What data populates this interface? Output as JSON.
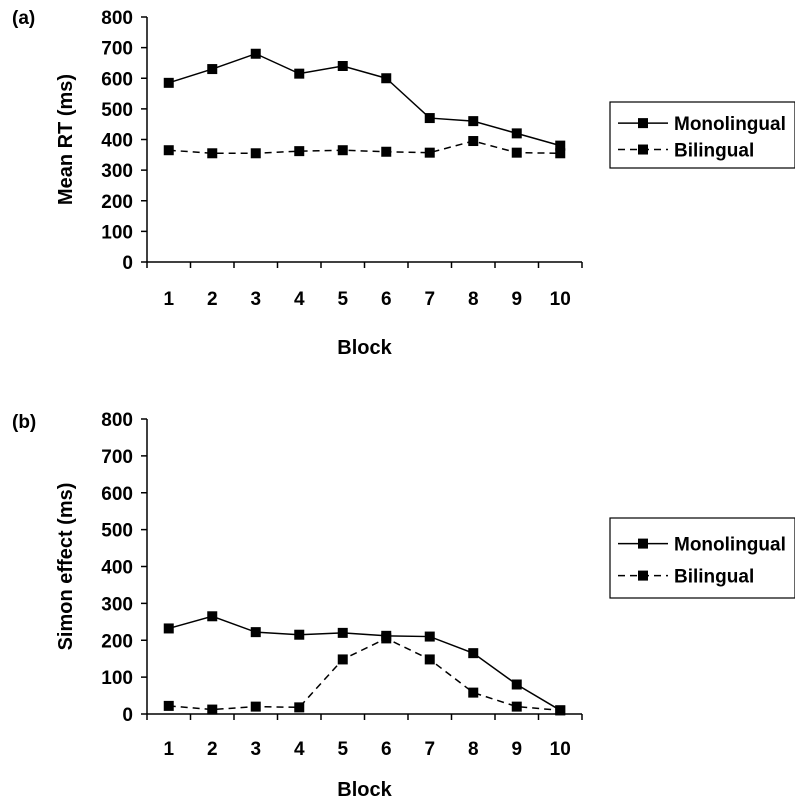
{
  "chart_data": [
    {
      "panel_label": "(a)",
      "type": "line",
      "categories": [
        "1",
        "2",
        "3",
        "4",
        "5",
        "6",
        "7",
        "8",
        "9",
        "10"
      ],
      "xlabel": "Block",
      "ylabel": "Mean RT (ms)",
      "ylim": [
        0,
        800
      ],
      "yticks": [
        "0",
        "100",
        "200",
        "300",
        "400",
        "500",
        "600",
        "700",
        "800"
      ],
      "grid": false,
      "legend_position": "right",
      "series": [
        {
          "name": "Monolingual",
          "line_style": "solid",
          "values": [
            585,
            630,
            680,
            615,
            640,
            600,
            470,
            460,
            420,
            380
          ]
        },
        {
          "name": "Bilingual",
          "line_style": "dashed",
          "values": [
            365,
            355,
            355,
            362,
            365,
            360,
            357,
            395,
            357,
            355
          ]
        }
      ]
    },
    {
      "panel_label": "(b)",
      "type": "line",
      "categories": [
        "1",
        "2",
        "3",
        "4",
        "5",
        "6",
        "7",
        "8",
        "9",
        "10"
      ],
      "xlabel": "Block",
      "ylabel": "Simon effect (ms)",
      "ylim": [
        0,
        800
      ],
      "yticks": [
        "0",
        "100",
        "200",
        "300",
        "400",
        "500",
        "600",
        "700",
        "800"
      ],
      "grid": false,
      "legend_position": "right",
      "series": [
        {
          "name": "Monolingual",
          "line_style": "solid",
          "values": [
            232,
            265,
            222,
            215,
            220,
            212,
            210,
            165,
            80,
            10
          ]
        },
        {
          "name": "Bilingual",
          "line_style": "dashed",
          "values": [
            22,
            12,
            20,
            18,
            148,
            205,
            148,
            58,
            20,
            10
          ]
        }
      ]
    }
  ],
  "colors": {
    "line": "#000000",
    "marker": "#000000",
    "background": "#ffffff"
  }
}
